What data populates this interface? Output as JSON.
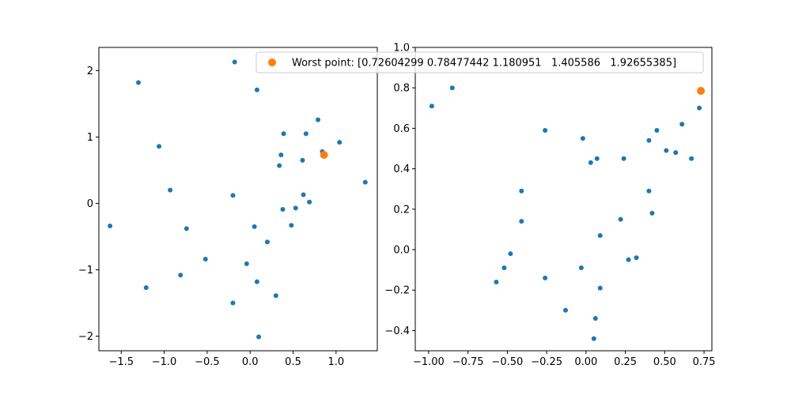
{
  "colors": {
    "series": "#1f77b4",
    "worst": "#ff7f0e",
    "axis": "#000000",
    "legend_edge": "#cccccc",
    "background": "#ffffff"
  },
  "chart_data": [
    {
      "type": "scatter",
      "title": "",
      "xlabel": "",
      "ylabel": "",
      "xlim": [
        -1.76,
        1.48
      ],
      "ylim": [
        -2.22,
        2.35
      ],
      "grid": false,
      "xticks": [
        -1.5,
        -1.0,
        -0.5,
        0.0,
        0.5,
        1.0
      ],
      "xtick_labels": [
        "−1.5",
        "−1.0",
        "−0.5",
        "0.0",
        "0.5",
        "1.0"
      ],
      "yticks": [
        -2,
        -1,
        0,
        1,
        2
      ],
      "ytick_labels": [
        "−2",
        "−1",
        "0",
        "1",
        "2"
      ],
      "series": [
        {
          "points": [
            [
              -0.18,
              2.13
            ],
            [
              -1.3,
              1.82
            ],
            [
              0.08,
              1.71
            ],
            [
              -1.06,
              0.86
            ],
            [
              0.79,
              1.26
            ],
            [
              0.39,
              1.05
            ],
            [
              0.65,
              1.05
            ],
            [
              1.04,
              0.92
            ],
            [
              0.36,
              0.73
            ],
            [
              0.84,
              0.78
            ],
            [
              0.34,
              0.57
            ],
            [
              0.61,
              0.65
            ],
            [
              -0.93,
              0.2
            ],
            [
              -0.2,
              0.12
            ],
            [
              0.62,
              0.13
            ],
            [
              1.34,
              0.32
            ],
            [
              0.69,
              0.02
            ],
            [
              -1.63,
              -0.34
            ],
            [
              -0.74,
              -0.38
            ],
            [
              0.53,
              -0.07
            ],
            [
              0.38,
              -0.09
            ],
            [
              0.05,
              -0.35
            ],
            [
              0.48,
              -0.33
            ],
            [
              0.2,
              -0.58
            ],
            [
              -0.52,
              -0.84
            ],
            [
              -0.04,
              -0.91
            ],
            [
              -0.81,
              -1.08
            ],
            [
              -1.21,
              -1.27
            ],
            [
              0.08,
              -1.18
            ],
            [
              0.3,
              -1.39
            ],
            [
              -0.2,
              -1.5
            ],
            [
              0.1,
              -2.01
            ]
          ]
        },
        {
          "points": [
            [
              0.86,
              0.73
            ]
          ]
        }
      ]
    },
    {
      "type": "scatter",
      "title": "",
      "xlabel": "",
      "ylabel": "",
      "xlim": [
        -1.085,
        0.8
      ],
      "ylim": [
        -0.5,
        1.0
      ],
      "grid": false,
      "xticks": [
        -1.0,
        -0.75,
        -0.5,
        -0.25,
        0.0,
        0.25,
        0.5,
        0.75
      ],
      "xtick_labels": [
        "−1.00",
        "−0.75",
        "−0.50",
        "−0.25",
        "0.00",
        "0.25",
        "0.50",
        "0.75"
      ],
      "yticks": [
        -0.4,
        -0.2,
        0.0,
        0.2,
        0.4,
        0.6,
        0.8,
        1.0
      ],
      "ytick_labels": [
        "−0.4",
        "−0.2",
        "0.0",
        "0.2",
        "0.4",
        "0.6",
        "0.8",
        "1.0"
      ],
      "legend": {
        "label": "Worst point: [0.72604299 0.78477442 1.180951   1.405586   1.92655385]",
        "loc": "upper right"
      },
      "series": [
        {
          "points": [
            [
              -0.98,
              0.71
            ],
            [
              -0.85,
              0.8
            ],
            [
              -0.26,
              0.59
            ],
            [
              -0.02,
              0.55
            ],
            [
              0.03,
              0.43
            ],
            [
              0.07,
              0.45
            ],
            [
              0.24,
              0.45
            ],
            [
              0.4,
              0.54
            ],
            [
              0.45,
              0.59
            ],
            [
              0.51,
              0.49
            ],
            [
              0.57,
              0.48
            ],
            [
              0.61,
              0.62
            ],
            [
              0.67,
              0.45
            ],
            [
              0.72,
              0.7
            ],
            [
              -0.41,
              0.29
            ],
            [
              -0.41,
              0.14
            ],
            [
              0.4,
              0.29
            ],
            [
              0.42,
              0.18
            ],
            [
              0.22,
              0.15
            ],
            [
              0.09,
              0.07
            ],
            [
              -0.48,
              -0.02
            ],
            [
              -0.52,
              -0.09
            ],
            [
              -0.57,
              -0.16
            ],
            [
              -0.26,
              -0.14
            ],
            [
              -0.03,
              -0.09
            ],
            [
              0.27,
              -0.05
            ],
            [
              0.32,
              -0.04
            ],
            [
              0.09,
              -0.19
            ],
            [
              -0.13,
              -0.3
            ],
            [
              0.06,
              -0.34
            ],
            [
              0.05,
              -0.44
            ]
          ]
        },
        {
          "name": "Worst point: [0.72604299 0.78477442 1.180951   1.405586   1.92655385]",
          "points": [
            [
              0.73,
              0.785
            ]
          ]
        }
      ]
    }
  ]
}
